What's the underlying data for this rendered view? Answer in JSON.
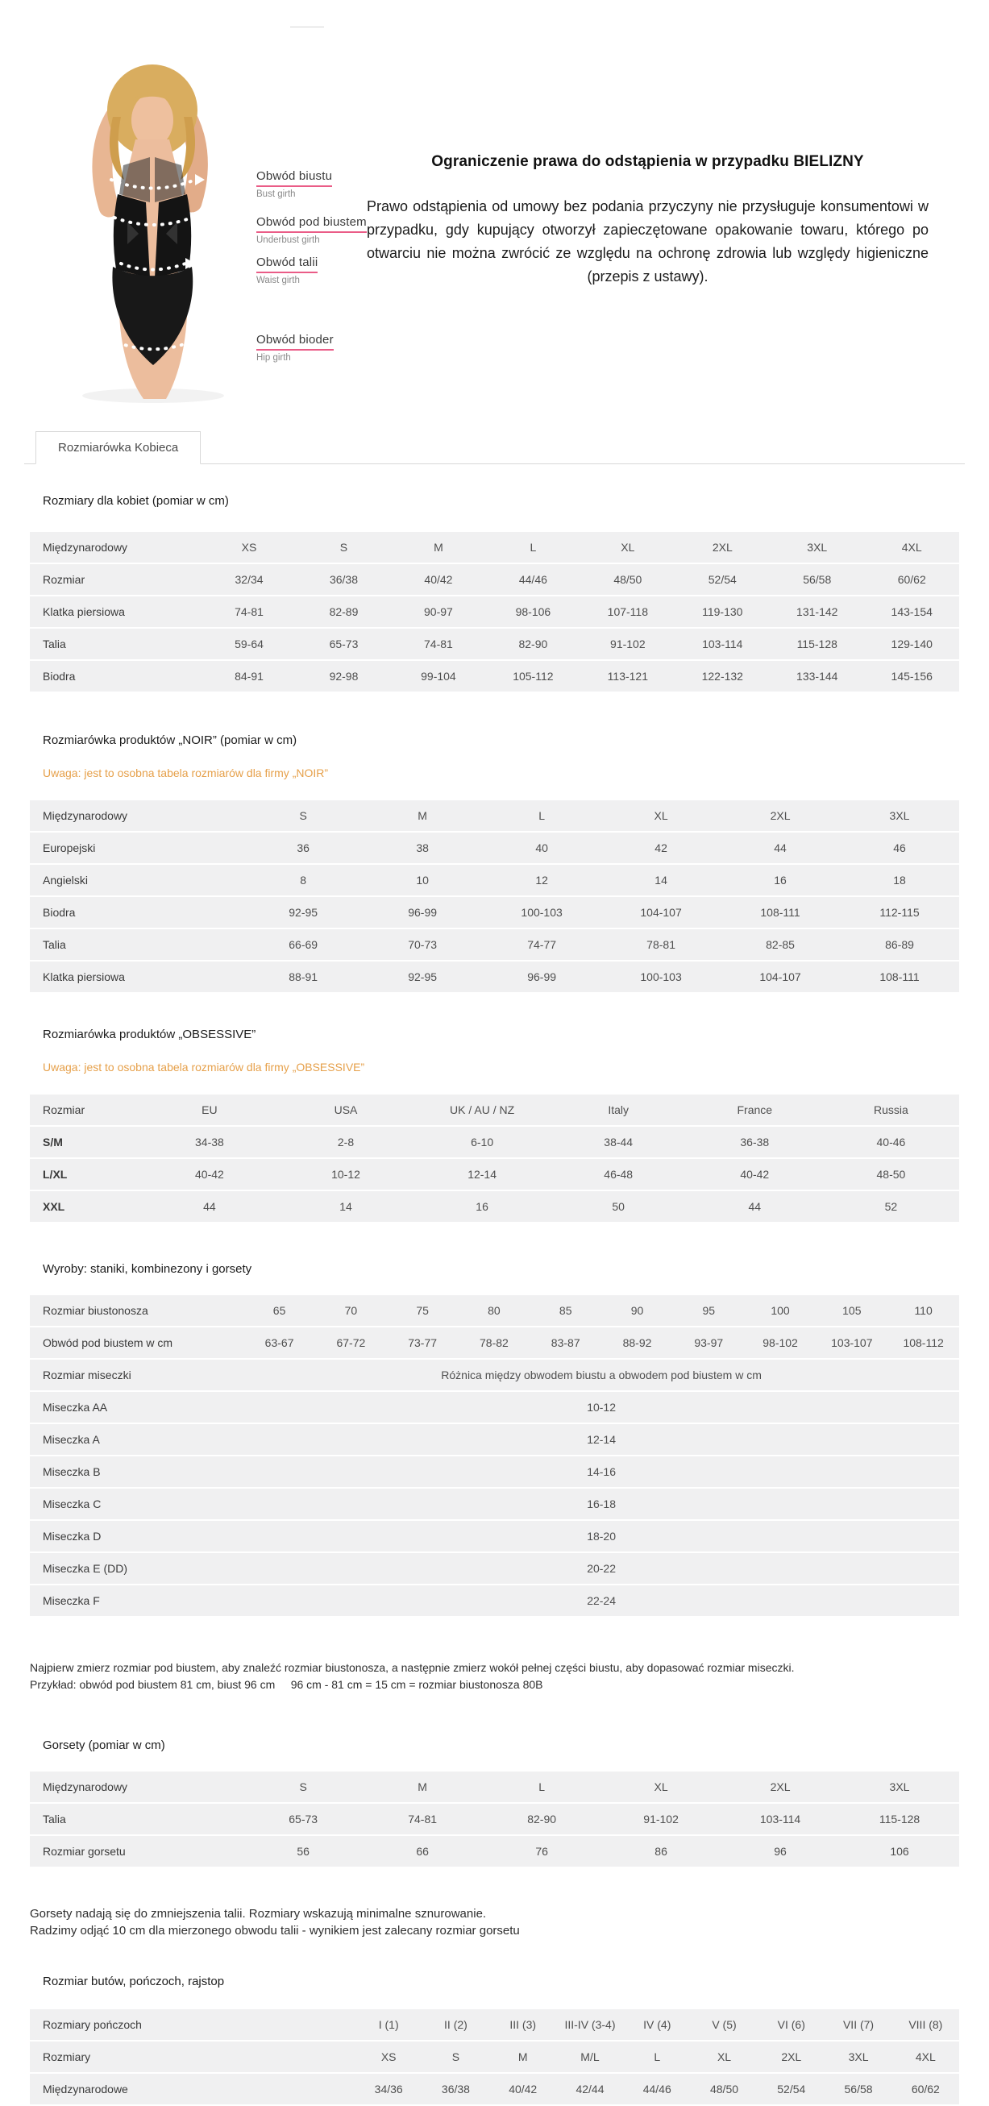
{
  "hero": {
    "labels": [
      {
        "pl": "Obwód biustu",
        "en": "Bust girth"
      },
      {
        "pl": "Obwód pod biustem",
        "en": "Underbust girth"
      },
      {
        "pl": "Obwód talii",
        "en": "Waist girth"
      },
      {
        "pl": "Obwód bioder",
        "en": "Hip girth"
      }
    ],
    "notice_title": "Ograniczenie prawa do odstąpienia w przypadku BIELIZNY",
    "notice_body": "Prawo odstąpienia od umowy bez podania przyczyny nie przysługuje konsumentowi w przypadku, gdy kupujący otworzył zapieczętowane opakowanie towaru, którego po otwarciu nie można zwrócić ze względu na ochronę zdrowia lub względy higieniczne (przepis z ustawy)."
  },
  "tab": {
    "label": "Rozmiarówka Kobieca"
  },
  "colors": {
    "accent_orange": "#e6a04a",
    "accent_pink": "#ea5c87",
    "table_bg": "#f0f0f1"
  },
  "sections": {
    "women": {
      "title": "Rozmiary dla kobiet (pomiar w cm)"
    },
    "noir": {
      "title": "Rozmiarówka produktów „NOIR” (pomiar w cm)",
      "note": "Uwaga: jest to osobna tabela rozmiarów dla firmy „NOIR”"
    },
    "obsessive": {
      "title": "Rozmiarówka produktów „OBSESSIVE”",
      "note": "Uwaga: jest to osobna tabela rozmiarów dla firmy „OBSESSIVE”"
    },
    "bras": {
      "title": "Wyroby: staniki, kombinezony i gorsety",
      "note1": "Najpierw zmierz rozmiar pod biustem, aby znaleźć rozmiar biustonosza, a następnie zmierz wokół pełnej części biustu, aby dopasować rozmiar miseczki.",
      "note2": "Przykład: obwód pod biustem 81 cm, biust 96 cm     96 cm - 81 cm = 15 cm = rozmiar biustonosza 80B"
    },
    "corsets": {
      "title": "Gorsety (pomiar w cm)",
      "note1": "Gorsety nadają się do zmniejszenia talii. Rozmiary wskazują minimalne sznurowanie.",
      "note2": "Radzimy odjąć 10 cm dla mierzonego obwodu talii - wynikiem jest zalecany rozmiar gorsetu"
    },
    "hosiery": {
      "title": "Rozmiar butów, pończoch, rajstop"
    }
  },
  "tables": {
    "women": {
      "cols": 8,
      "rows": [
        {
          "label": "Międzynarodowy",
          "values": [
            "XS",
            "S",
            "M",
            "L",
            "XL",
            "2XL",
            "3XL",
            "4XL"
          ]
        },
        {
          "label": "Rozmiar",
          "values": [
            "32/34",
            "36/38",
            "40/42",
            "44/46",
            "48/50",
            "52/54",
            "56/58",
            "60/62"
          ]
        },
        {
          "label": "Klatka piersiowa",
          "values": [
            "74-81",
            "82-89",
            "90-97",
            "98-106",
            "107-118",
            "119-130",
            "131-142",
            "143-154"
          ]
        },
        {
          "label": "Talia",
          "values": [
            "59-64",
            "65-73",
            "74-81",
            "82-90",
            "91-102",
            "103-114",
            "115-128",
            "129-140"
          ]
        },
        {
          "label": "Biodra",
          "values": [
            "84-91",
            "92-98",
            "99-104",
            "105-112",
            "113-121",
            "122-132",
            "133-144",
            "145-156"
          ]
        }
      ]
    },
    "noir": {
      "cols": 6,
      "rows": [
        {
          "label": "Międzynarodowy",
          "values": [
            "S",
            "M",
            "L",
            "XL",
            "2XL",
            "3XL"
          ]
        },
        {
          "label": "Europejski",
          "values": [
            "36",
            "38",
            "40",
            "42",
            "44",
            "46"
          ]
        },
        {
          "label": "Angielski",
          "values": [
            "8",
            "10",
            "12",
            "14",
            "16",
            "18"
          ]
        },
        {
          "label": "Biodra",
          "values": [
            "92-95",
            "96-99",
            "100-103",
            "104-107",
            "108-111",
            "112-115"
          ]
        },
        {
          "label": "Talia",
          "values": [
            "66-69",
            "70-73",
            "74-77",
            "78-81",
            "82-85",
            "86-89"
          ]
        },
        {
          "label": "Klatka piersiowa",
          "values": [
            "88-91",
            "92-95",
            "96-99",
            "100-103",
            "104-107",
            "108-111"
          ]
        }
      ]
    },
    "obsessive": {
      "cols": 6,
      "rows": [
        {
          "label": "Rozmiar",
          "values": [
            "EU",
            "USA",
            "UK / AU / NZ",
            "Italy",
            "France",
            "Russia"
          ]
        },
        {
          "label": "S/M",
          "bold": true,
          "values": [
            "34-38",
            "2-8",
            "6-10",
            "38-44",
            "36-38",
            "40-46"
          ]
        },
        {
          "label": "L/XL",
          "bold": true,
          "values": [
            "40-42",
            "10-12",
            "12-14",
            "46-48",
            "40-42",
            "48-50"
          ]
        },
        {
          "label": "XXL",
          "bold": true,
          "values": [
            "44",
            "14",
            "16",
            "50",
            "44",
            "52"
          ]
        }
      ]
    },
    "bras": {
      "cols": 10,
      "rows": [
        {
          "label": "Rozmiar biustonosza",
          "values": [
            "65",
            "70",
            "75",
            "80",
            "85",
            "90",
            "95",
            "100",
            "105",
            "110"
          ]
        },
        {
          "label": "Obwód pod biustem w cm",
          "values": [
            "63-67",
            "67-72",
            "73-77",
            "78-82",
            "83-87",
            "88-92",
            "93-97",
            "98-102",
            "103-107",
            "108-112"
          ]
        },
        {
          "label": "Rozmiar miseczki",
          "span": "Różnica między obwodem biustu a obwodem pod biustem w cm"
        },
        {
          "label": "Miseczka AA",
          "span": "10-12"
        },
        {
          "label": "Miseczka A",
          "span": "12-14"
        },
        {
          "label": "Miseczka B",
          "span": "14-16"
        },
        {
          "label": "Miseczka C",
          "span": "16-18"
        },
        {
          "label": "Miseczka D",
          "span": "18-20"
        },
        {
          "label": "Miseczka E  (DD)",
          "span": "20-22"
        },
        {
          "label": "Miseczka F",
          "span": "22-24"
        }
      ]
    },
    "corsets": {
      "cols": 6,
      "rows": [
        {
          "label": "Międzynarodowy",
          "values": [
            "S",
            "M",
            "L",
            "XL",
            "2XL",
            "3XL"
          ]
        },
        {
          "label": "Talia",
          "values": [
            "65-73",
            "74-81",
            "82-90",
            "91-102",
            "103-114",
            "115-128"
          ]
        },
        {
          "label": "Rozmiar gorsetu",
          "values": [
            "56",
            "66",
            "76",
            "86",
            "96",
            "106"
          ]
        }
      ]
    },
    "hosiery": {
      "cols": 9,
      "rows": [
        {
          "label": "Rozmiary pończoch",
          "values": [
            "I (1)",
            "II (2)",
            "III (3)",
            "III-IV (3-4)",
            "IV (4)",
            "V (5)",
            "VI (6)",
            "VII (7)",
            "VIII (8)"
          ]
        },
        {
          "label": "Rozmiary",
          "values": [
            "XS",
            "S",
            "M",
            "M/L",
            "L",
            "XL",
            "2XL",
            "3XL",
            "4XL"
          ]
        },
        {
          "label": "Międzynarodowe",
          "values": [
            "34/36",
            "36/38",
            "40/42",
            "42/44",
            "44/46",
            "48/50",
            "52/54",
            "56/58",
            "60/62"
          ]
        }
      ]
    }
  }
}
